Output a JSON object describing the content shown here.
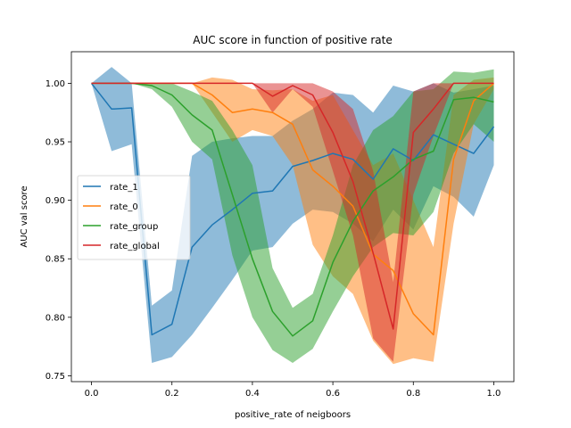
{
  "chart_data": {
    "type": "line",
    "title": "AUC score in function of positive rate",
    "xlabel": "positive_rate of neigboors",
    "ylabel": "AUC val score",
    "xlim": [
      -0.05,
      1.05
    ],
    "ylim": [
      0.745,
      1.027
    ],
    "xticks": [
      0.0,
      0.2,
      0.4,
      0.6,
      0.8,
      1.0
    ],
    "xtick_labels": [
      "0.0",
      "0.2",
      "0.4",
      "0.6",
      "0.8",
      "1.0"
    ],
    "yticks": [
      0.75,
      0.8,
      0.85,
      0.9,
      0.95,
      1.0
    ],
    "ytick_labels": [
      "0.75",
      "0.80",
      "0.85",
      "0.90",
      "0.95",
      "1.00"
    ],
    "grid": false,
    "legend_position": "center-left",
    "x": [
      0.0,
      0.05,
      0.1,
      0.15,
      0.2,
      0.25,
      0.3,
      0.35,
      0.4,
      0.45,
      0.5,
      0.55,
      0.6,
      0.65,
      0.7,
      0.75,
      0.8,
      0.85,
      0.9,
      0.95,
      1.0
    ],
    "series": [
      {
        "name": "rate_1",
        "color": "#1f77b4",
        "values": [
          1.0,
          0.978,
          0.979,
          0.785,
          0.794,
          0.86,
          0.879,
          0.892,
          0.906,
          0.908,
          0.929,
          0.934,
          0.94,
          0.935,
          0.918,
          0.944,
          0.934,
          0.956,
          0.948,
          0.94,
          0.963
        ],
        "upper": [
          1.0,
          1.014,
          1.0,
          0.81,
          0.823,
          0.938,
          0.95,
          0.953,
          0.955,
          0.955,
          0.968,
          0.978,
          0.992,
          0.99,
          0.975,
          0.998,
          0.993,
          1.0,
          0.992,
          0.995,
          0.998
        ],
        "lower": [
          1.0,
          0.942,
          0.948,
          0.761,
          0.766,
          0.785,
          0.808,
          0.832,
          0.857,
          0.86,
          0.88,
          0.892,
          0.89,
          0.88,
          0.865,
          0.892,
          0.875,
          0.912,
          0.903,
          0.886,
          0.93
        ]
      },
      {
        "name": "rate_0",
        "color": "#ff7f0e",
        "values": [
          1.0,
          1.0,
          1.0,
          1.0,
          1.0,
          1.0,
          0.99,
          0.975,
          0.978,
          0.975,
          0.965,
          0.926,
          0.912,
          0.895,
          0.854,
          0.84,
          0.803,
          0.785,
          0.935,
          0.985,
          1.0
        ],
        "upper": [
          1.0,
          1.0,
          1.0,
          1.0,
          1.0,
          1.0,
          1.005,
          1.003,
          0.995,
          0.994,
          0.995,
          0.985,
          0.99,
          0.96,
          0.93,
          0.94,
          0.9,
          0.86,
          0.99,
          1.003,
          1.005
        ],
        "lower": [
          1.0,
          1.0,
          1.0,
          1.0,
          1.0,
          1.0,
          0.975,
          0.95,
          0.96,
          0.955,
          0.93,
          0.862,
          0.835,
          0.82,
          0.78,
          0.76,
          0.765,
          0.762,
          0.88,
          0.965,
          0.995
        ]
      },
      {
        "name": "rate_group",
        "color": "#2ca02c",
        "values": [
          1.0,
          1.0,
          1.0,
          0.998,
          0.99,
          0.973,
          0.96,
          0.905,
          0.85,
          0.805,
          0.784,
          0.797,
          0.847,
          0.882,
          0.908,
          0.92,
          0.935,
          0.942,
          0.986,
          0.988,
          0.984
        ],
        "upper": [
          1.0,
          1.0,
          1.0,
          1.0,
          1.0,
          0.993,
          0.985,
          0.96,
          0.93,
          0.842,
          0.808,
          0.82,
          0.87,
          0.93,
          0.96,
          0.972,
          0.993,
          0.995,
          1.01,
          1.009,
          1.012
        ],
        "lower": [
          1.0,
          1.0,
          1.0,
          0.995,
          0.98,
          0.95,
          0.935,
          0.853,
          0.8,
          0.772,
          0.761,
          0.773,
          0.805,
          0.835,
          0.86,
          0.872,
          0.87,
          0.89,
          0.94,
          0.965,
          0.95
        ]
      },
      {
        "name": "rate_global",
        "color": "#d62728",
        "values": [
          1.0,
          1.0,
          1.0,
          1.0,
          1.0,
          1.0,
          1.0,
          1.0,
          1.0,
          0.989,
          0.998,
          0.99,
          0.958,
          0.916,
          0.855,
          0.79,
          0.958,
          0.978,
          1.0,
          1.0,
          1.0
        ],
        "upper": [
          1.0,
          1.0,
          1.0,
          1.0,
          1.0,
          1.0,
          1.0,
          1.0,
          1.0,
          1.0,
          1.0,
          1.0,
          0.993,
          0.978,
          0.925,
          0.83,
          0.993,
          1.0,
          1.0,
          1.0,
          1.0
        ],
        "lower": [
          1.0,
          1.0,
          1.0,
          1.0,
          1.0,
          1.0,
          1.0,
          1.0,
          1.0,
          0.975,
          0.995,
          0.98,
          0.925,
          0.87,
          0.782,
          0.762,
          0.905,
          0.955,
          1.0,
          1.0,
          1.0
        ]
      }
    ]
  }
}
